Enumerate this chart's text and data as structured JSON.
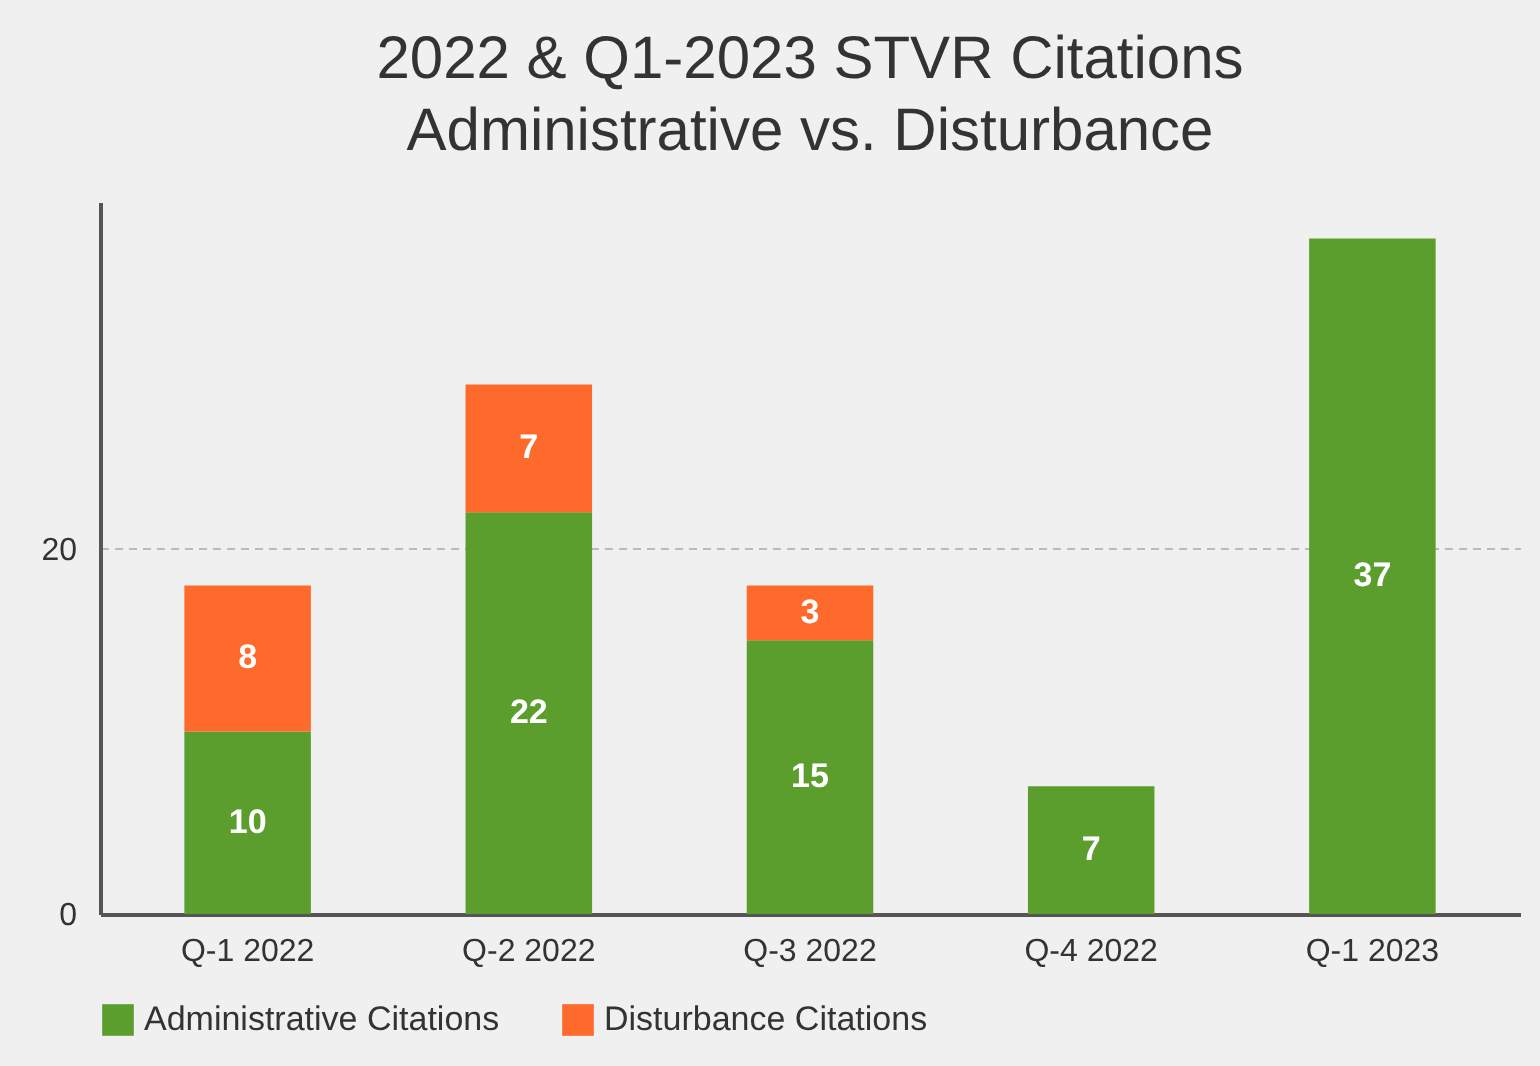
{
  "chart_data": {
    "type": "bar",
    "title": "2022 & Q1-2023 STVR Citations\nAdministrative vs. Disturbance",
    "categories": [
      "Q-1 2022",
      "Q-2 2022",
      "Q-3 2022",
      "Q-4 2022",
      "Q-1 2023"
    ],
    "series": [
      {
        "name": "Administrative Citations",
        "color": "#5c9e2e",
        "values": [
          10,
          22,
          15,
          7,
          37
        ]
      },
      {
        "name": "Disturbance Citations",
        "color": "#fd6a2c",
        "values": [
          8,
          7,
          3,
          null,
          null
        ]
      }
    ],
    "stacked": true,
    "data_labels": true,
    "ylim": [
      0,
      39
    ],
    "yticks": [
      0,
      20
    ],
    "grid": "y",
    "legend": "bottom"
  }
}
